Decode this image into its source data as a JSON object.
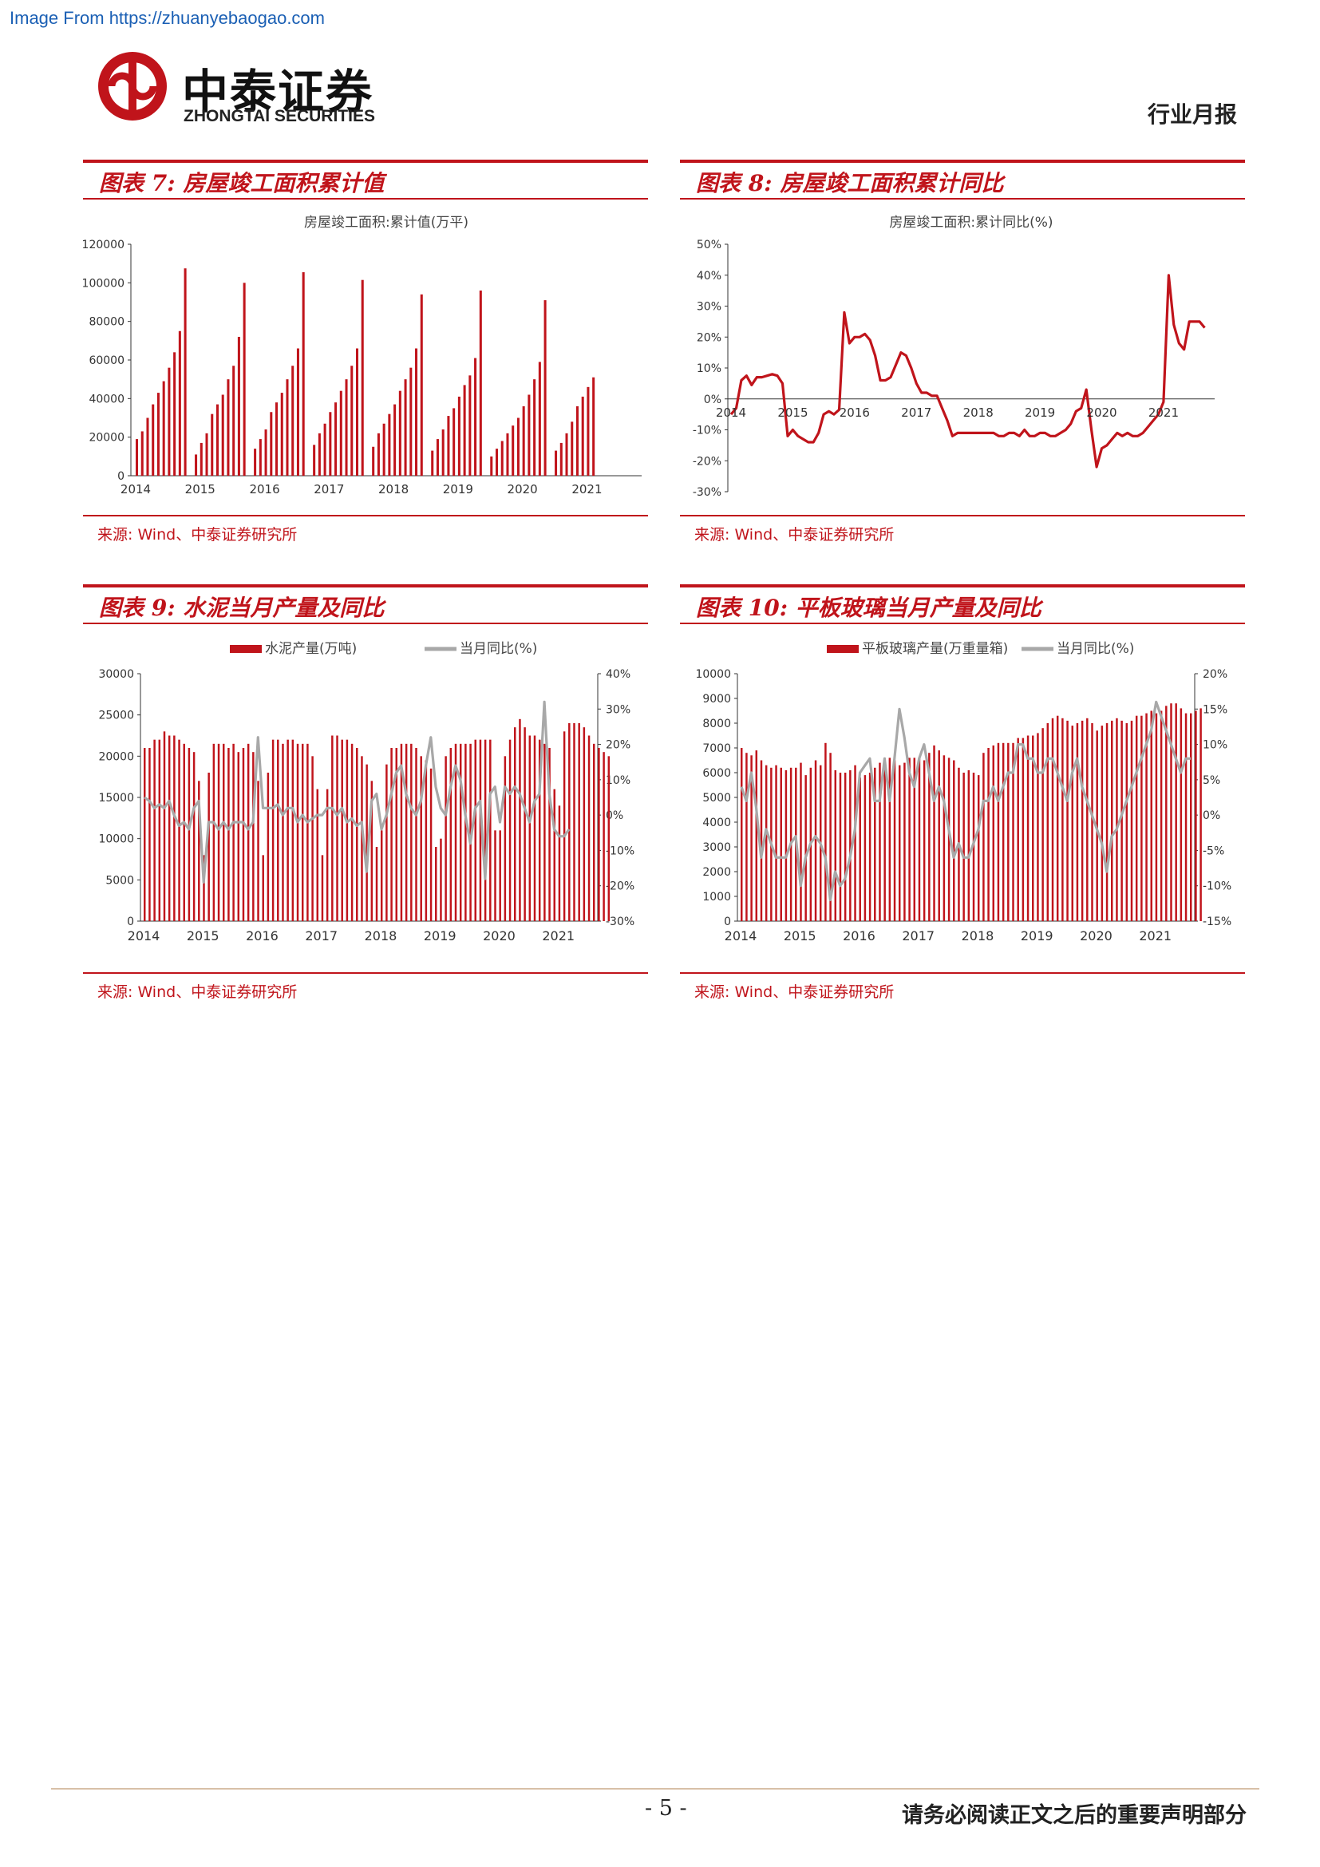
{
  "source_url": "Image From https://zhuanyebaogao.com",
  "header": {
    "logo_cn": "中泰证券",
    "logo_en": "ZHONGTAI SECURITIES",
    "report_type": "行业月报"
  },
  "panels": [
    {
      "title": "图表 7:  房屋竣工面积累计值",
      "source": "来源: Wind、中泰证券研究所"
    },
    {
      "title": "图表 8:  房屋竣工面积累计同比",
      "source": "来源: Wind、中泰证券研究所"
    },
    {
      "title": "图表 9:  水泥当月产量及同比",
      "source": "来源: Wind、中泰证券研究所"
    },
    {
      "title": "图表 10:  平板玻璃当月产量及同比",
      "source": "来源: Wind、中泰证券研究所"
    }
  ],
  "footer": {
    "page_number": "- 5 -",
    "disclaimer": "请务必阅读正文之后的重要声明部分"
  },
  "colors": {
    "brand_red": "#c0141b",
    "series_gray": "#a8a8a8"
  },
  "chart_data": [
    {
      "type": "bar",
      "title": "房屋竣工面积:累计值(万平)",
      "x_start": "2014-01",
      "frequency": "monthly",
      "x_ticks": [
        "2014",
        "2015",
        "2016",
        "2017",
        "2018",
        "2019",
        "2020",
        "2021"
      ],
      "ylim": [
        0,
        120000
      ],
      "y_ticks": [
        "0",
        "20000",
        "40000",
        "60000",
        "80000",
        "100000",
        "120000"
      ],
      "values": [
        19000,
        23000,
        30000,
        37000,
        43000,
        49000,
        56000,
        64000,
        75000,
        107500,
        0,
        11000,
        17000,
        22000,
        32000,
        37000,
        42000,
        50000,
        57000,
        72000,
        100000,
        0,
        14000,
        19000,
        24000,
        33000,
        38000,
        43000,
        50000,
        57000,
        66000,
        105500,
        0,
        16000,
        22000,
        27000,
        33000,
        38000,
        44000,
        50000,
        57000,
        66000,
        101500,
        0,
        15000,
        22000,
        27000,
        32000,
        37000,
        44000,
        50000,
        56000,
        66000,
        94000,
        0,
        13000,
        19000,
        24000,
        31000,
        35000,
        41000,
        47000,
        52000,
        61000,
        96000,
        0,
        10000,
        14000,
        18000,
        22000,
        26000,
        30000,
        36000,
        42000,
        50000,
        59000,
        91000,
        0,
        13000,
        17000,
        22000,
        28000,
        36000,
        41000,
        46000,
        51000
      ]
    },
    {
      "type": "line",
      "title": "房屋竣工面积:累计同比(%)",
      "x_start": "2014-01",
      "frequency": "monthly",
      "x_ticks": [
        "2014",
        "2015",
        "2016",
        "2017",
        "2018",
        "2019",
        "2020",
        "2021"
      ],
      "ylim": [
        -30,
        50
      ],
      "y_ticks": [
        "50%",
        "40%",
        "30%",
        "20%",
        "10%",
        "0%",
        "-10%",
        "-20%",
        "-30%"
      ],
      "series": [
        {
          "values": [
            -5,
            -3,
            6,
            7.5,
            4.5,
            7,
            7,
            7.5,
            8,
            7.5,
            5,
            -12,
            -10,
            -12,
            -13,
            -14,
            -14,
            -11,
            -5,
            -4,
            -5,
            -3.5,
            28,
            18,
            20,
            20,
            21,
            19,
            14,
            6,
            6,
            7,
            11,
            15,
            14,
            10,
            5,
            2,
            2,
            1,
            1,
            -3,
            -7,
            -12,
            -11,
            -11,
            -11,
            -11,
            -11,
            -11,
            -11,
            -11,
            -12,
            -12,
            -11,
            -11,
            -12,
            -10,
            -12,
            -12,
            -11,
            -11,
            -12,
            -12,
            -11,
            -10,
            -8,
            -4,
            -3,
            3,
            -10,
            -22,
            -16,
            -15,
            -13,
            -11,
            -12,
            -11,
            -12,
            -12,
            -11,
            -9,
            -7,
            -5,
            -1,
            40,
            24,
            18,
            16,
            25,
            25,
            25,
            23
          ]
        }
      ]
    },
    {
      "type": "bar_line",
      "x_start": "2014-01",
      "frequency": "monthly",
      "x_ticks": [
        "2014",
        "2015",
        "2016",
        "2017",
        "2018",
        "2019",
        "2020",
        "2021"
      ],
      "series": [
        {
          "name": "水泥产量(万吨)",
          "axis": "left",
          "ylim": [
            0,
            30000
          ],
          "y_ticks": [
            "0",
            "5000",
            "10000",
            "15000",
            "20000",
            "25000",
            "30000"
          ],
          "values": [
            21000,
            21000,
            22000,
            22000,
            23000,
            22500,
            22500,
            22000,
            21500,
            21000,
            20500,
            17000,
            8000,
            18000,
            21500,
            21500,
            21500,
            21000,
            21500,
            20500,
            21000,
            21500,
            20500,
            17000,
            8000,
            18000,
            22000,
            22000,
            21500,
            22000,
            22000,
            21500,
            21500,
            21500,
            20000,
            16000,
            8000,
            16000,
            22500,
            22500,
            22000,
            22000,
            21500,
            21000,
            20000,
            19000,
            17000,
            9000,
            11000,
            19000,
            21000,
            21000,
            21500,
            21500,
            21500,
            21000,
            20000,
            19500,
            18500,
            9000,
            10000,
            20000,
            21000,
            21500,
            21500,
            21500,
            21500,
            22000,
            22000,
            22000,
            22000,
            11000,
            11000,
            20000,
            22000,
            23500,
            24500,
            23500,
            22500,
            22500,
            22000,
            21500,
            21000,
            16000,
            14000,
            23000,
            24000,
            24000,
            24000,
            23500,
            22500,
            21500,
            21000,
            20500,
            20000
          ]
        },
        {
          "name": "当月同比(%)",
          "axis": "right",
          "ylim": [
            -30,
            40
          ],
          "y_ticks": [
            "-30%",
            "-20%",
            "-10%",
            "0%",
            "10%",
            "20%",
            "30%",
            "40%"
          ],
          "values": [
            5,
            4,
            2,
            3,
            2,
            4,
            0,
            -3,
            -2,
            -4,
            2,
            4,
            -19,
            -2,
            -2,
            -4,
            -2,
            -4,
            -2,
            -2,
            -2,
            -4,
            -2,
            22,
            2,
            2,
            2,
            3,
            0,
            2,
            2,
            -2,
            0,
            -2,
            -1,
            0,
            0,
            2,
            2,
            0,
            2,
            -2,
            -1,
            -3,
            -2,
            -16,
            4,
            6,
            -4,
            0,
            6,
            12,
            14,
            6,
            2,
            0,
            4,
            14,
            22,
            8,
            2,
            0,
            8,
            14,
            10,
            0,
            -8,
            2,
            4,
            -18,
            6,
            8,
            -2,
            8,
            6,
            8,
            6,
            2,
            -2,
            4,
            6,
            32,
            6,
            -4,
            -6,
            -6,
            -4
          ]
        }
      ]
    },
    {
      "type": "bar_line",
      "x_start": "2014-01",
      "frequency": "monthly",
      "x_ticks": [
        "2014",
        "2015",
        "2016",
        "2017",
        "2018",
        "2019",
        "2020",
        "2021"
      ],
      "series": [
        {
          "name": "平板玻璃产量(万重量箱)",
          "axis": "left",
          "ylim": [
            0,
            10000
          ],
          "y_ticks": [
            "0",
            "1000",
            "2000",
            "3000",
            "4000",
            "5000",
            "6000",
            "7000",
            "8000",
            "9000",
            "10000"
          ],
          "values": [
            7000,
            6800,
            6700,
            6900,
            6500,
            6300,
            6200,
            6300,
            6200,
            6100,
            6200,
            6200,
            6400,
            5900,
            6200,
            6500,
            6300,
            7200,
            6800,
            6100,
            6000,
            6000,
            6100,
            6300,
            5800,
            5900,
            6000,
            6200,
            6400,
            6600,
            6600,
            6500,
            6300,
            6400,
            6600,
            6600,
            6600,
            6500,
            6800,
            7100,
            6900,
            6700,
            6600,
            6500,
            6200,
            6000,
            6100,
            6000,
            5900,
            6800,
            7000,
            7100,
            7200,
            7200,
            7200,
            7200,
            7400,
            7400,
            7500,
            7500,
            7600,
            7800,
            8000,
            8200,
            8300,
            8200,
            8100,
            7900,
            8000,
            8100,
            8200,
            8000,
            7700,
            7900,
            8000,
            8100,
            8200,
            8100,
            8000,
            8100,
            8300,
            8300,
            8400,
            8500,
            8400,
            8500,
            8700,
            8800,
            8800,
            8600,
            8400,
            8400,
            8500,
            8600
          ]
        },
        {
          "name": "当月同比(%)",
          "axis": "right",
          "ylim": [
            -15,
            20
          ],
          "y_ticks": [
            "-15%",
            "-10%",
            "-5%",
            "0%",
            "5%",
            "10%",
            "15%",
            "20%"
          ],
          "values": [
            4,
            2,
            6,
            1,
            -6,
            -2,
            -4,
            -6,
            -6,
            -6,
            -4,
            -3,
            -10,
            -6,
            -4,
            -3,
            -4,
            -6,
            -12,
            -8,
            -10,
            -9,
            -6,
            -2,
            6,
            7,
            8,
            2,
            2,
            8,
            2,
            8,
            15,
            11,
            6,
            4,
            8,
            10,
            6,
            2,
            4,
            2,
            -2,
            -6,
            -4,
            -6,
            -6,
            -4,
            -2,
            2,
            2,
            4,
            2,
            4,
            6,
            6,
            10,
            10,
            8,
            8,
            6,
            6,
            8,
            8,
            6,
            4,
            2,
            6,
            8,
            4,
            2,
            0,
            -2,
            -4,
            -8,
            -3,
            -2,
            0,
            2,
            4,
            6,
            8,
            10,
            12,
            16,
            14,
            12,
            10,
            8,
            6,
            8,
            8
          ]
        }
      ]
    }
  ]
}
